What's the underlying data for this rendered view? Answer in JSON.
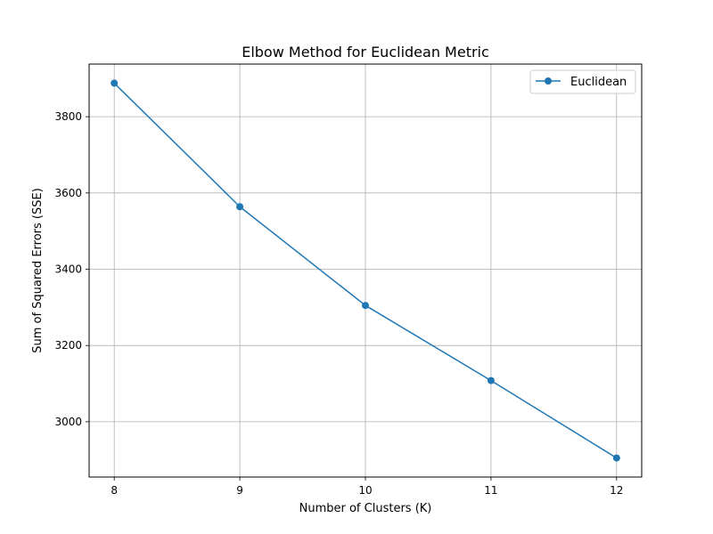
{
  "chart_data": {
    "type": "line",
    "title": "Elbow Method for Euclidean Metric",
    "xlabel": "Number of Clusters (K)",
    "ylabel": "Sum of Squared Errors (SSE)",
    "x": [
      8,
      9,
      10,
      11,
      12
    ],
    "xticks": [
      "8",
      "9",
      "10",
      "11",
      "12"
    ],
    "yticks": [
      3000,
      3200,
      3400,
      3600,
      3800
    ],
    "ytick_labels": [
      "3000",
      "3200",
      "3400",
      "3600",
      "3800"
    ],
    "xlim": [
      7.8,
      12.2
    ],
    "ylim": [
      2855,
      3938
    ],
    "grid": true,
    "legend_position": "upper right",
    "series": [
      {
        "name": "Euclidean",
        "color": "#1f77b4",
        "marker": "circle",
        "values": [
          3888,
          3564,
          3305,
          3108,
          2905
        ]
      }
    ]
  }
}
